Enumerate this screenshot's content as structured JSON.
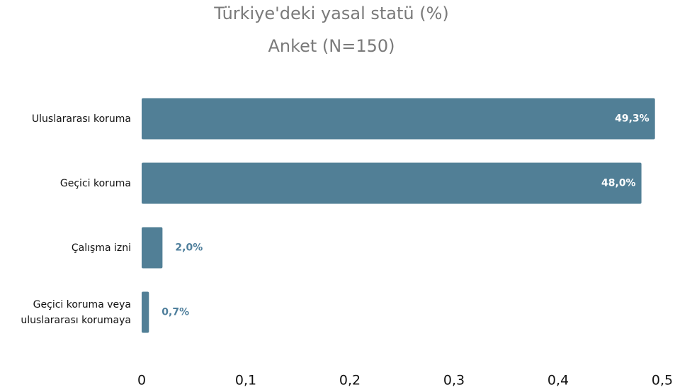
{
  "chart_data": {
    "type": "bar",
    "orientation": "horizontal",
    "title": "Türkiye'deki yasal statü (%)",
    "subtitle": "Anket (N=150)",
    "categories": [
      "Uluslararası koruma",
      "Geçici koruma",
      "Çalışma izni",
      "Geçici koruma veya uluslararası korumaya"
    ],
    "values": [
      0.493,
      0.48,
      0.02,
      0.007
    ],
    "value_labels": [
      "49,3%",
      "48,0%",
      "2,0%",
      "0,7%"
    ],
    "color": "#517f96",
    "xlim": [
      0,
      0.5
    ],
    "xticks": [
      0,
      {
        "value": 0.1,
        "label": "0,1"
      },
      {
        "value": 0.2,
        "label": "0,2"
      },
      {
        "value": 0.3,
        "label": "0,3"
      },
      {
        "value": 0.4,
        "label": "0,4"
      },
      {
        "value": 0.5,
        "label": "0,5"
      }
    ],
    "grid": false
  }
}
